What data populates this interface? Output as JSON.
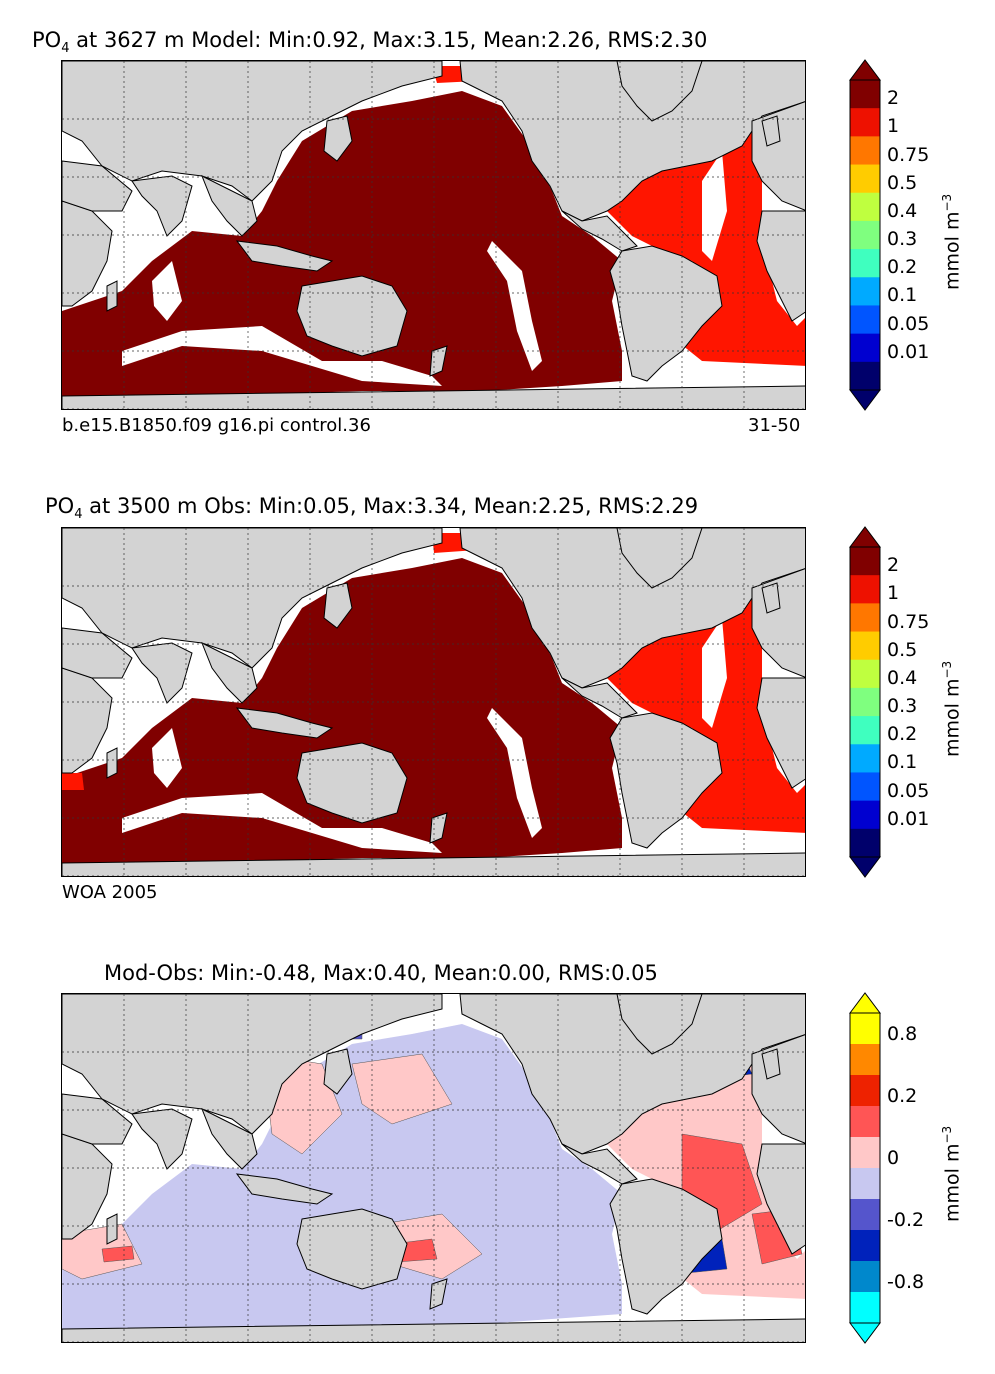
{
  "panels": [
    {
      "id": "model",
      "title_prefix": "PO",
      "title_sub": "4",
      "title_rest": " at 3627 m Model: Min:0.92, Max:3.15, Mean:2.26, RMS:2.30",
      "caption_left": "b.e15.B1850.f09 g16.pi control.36",
      "caption_right": "31-50",
      "colorbar_ticks": [
        "2",
        "1",
        "0.75",
        "0.5",
        "0.4",
        "0.3",
        "0.2",
        "0.1",
        "0.05",
        "0.01"
      ],
      "colorbar_colors": [
        "#800000",
        "#ee1100",
        "#ff7700",
        "#ffcc00",
        "#bfff3f",
        "#7fff7f",
        "#3fffbf",
        "#00aaff",
        "#0055ff",
        "#0000d0",
        "#00006b"
      ],
      "stats": {
        "min": 0.92,
        "max": 3.15,
        "mean": 2.26,
        "rms": 2.3
      },
      "depth_m": 3627
    },
    {
      "id": "obs",
      "title_prefix": "PO",
      "title_sub": "4",
      "title_rest": " at 3500 m Obs: Min:0.05, Max:3.34, Mean:2.25, RMS:2.29",
      "caption_left": "WOA 2005",
      "caption_right": "",
      "colorbar_ticks": [
        "2",
        "1",
        "0.75",
        "0.5",
        "0.4",
        "0.3",
        "0.2",
        "0.1",
        "0.05",
        "0.01"
      ],
      "colorbar_colors": [
        "#800000",
        "#ee1100",
        "#ff7700",
        "#ffcc00",
        "#bfff3f",
        "#7fff7f",
        "#3fffbf",
        "#00aaff",
        "#0055ff",
        "#0000d0",
        "#00006b"
      ],
      "stats": {
        "min": 0.05,
        "max": 3.34,
        "mean": 2.25,
        "rms": 2.29
      },
      "depth_m": 3500
    },
    {
      "id": "diff",
      "title_prefix": "Mod-Obs: Min:-0.48, Max:0.40, Mean:0.00, RMS:0.05",
      "title_sub": "",
      "title_rest": "",
      "caption_left": "",
      "caption_right": "",
      "colorbar_ticks": [
        "0.8",
        "0.2",
        "0",
        "-0.2",
        "-0.8"
      ],
      "colorbar_colors": [
        "#ffff00",
        "#ff8800",
        "#ee2200",
        "#ff5555",
        "#ffc8c8",
        "#c8c8f0",
        "#5555cc",
        "#0022bb",
        "#0088cc",
        "#00ffff"
      ],
      "stats": {
        "min": -0.48,
        "max": 0.4,
        "mean": 0.0,
        "rms": 0.05
      }
    }
  ],
  "unit_label": "mmol m",
  "unit_exp": "−3",
  "colors": {
    "land": "#d3d3d3",
    "model_pacific": "#800000",
    "model_atlantic": "#ff1500",
    "diff_pos": "#ffc8c8",
    "diff_neg": "#c8c8f0"
  }
}
